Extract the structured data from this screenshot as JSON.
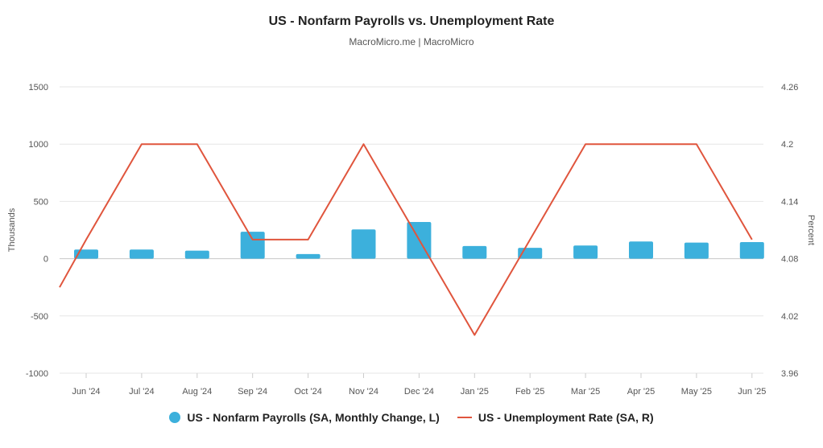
{
  "chart_data": {
    "type": "bar",
    "title": "US - Nonfarm Payrolls vs. Unemployment Rate",
    "subtitle": "MacroMicro.me | MacroMicro",
    "categories": [
      "Jun '24",
      "Jul '24",
      "Aug '24",
      "Sep '24",
      "Oct '24",
      "Nov '24",
      "Dec '24",
      "Jan '25",
      "Feb '25",
      "Mar '25",
      "Apr '25",
      "May '25",
      "Jun '25"
    ],
    "y_left": {
      "label": "Thousands",
      "ylim": [
        -1000,
        1500
      ],
      "ticks": [
        1500,
        1000,
        500,
        0,
        -500,
        -1000
      ],
      "tick_labels": [
        "1500",
        "1000",
        "500",
        "0",
        "-500",
        "-1000"
      ]
    },
    "y_right": {
      "label": "Percent",
      "ylim": [
        3.96,
        4.26
      ],
      "ticks": [
        4.26,
        4.2,
        4.14,
        4.08,
        4.02,
        3.96
      ],
      "tick_labels": [
        "4.26",
        "4.2",
        "4.14",
        "4.08",
        "4.02",
        "3.96"
      ]
    },
    "grid": true,
    "legend_position": "bottom",
    "series": [
      {
        "name": "US - Nonfarm Payrolls (SA, Monthly Change, L)",
        "type": "bar",
        "axis": "left",
        "color": "#3cb0dc",
        "values": [
          80,
          80,
          70,
          235,
          40,
          255,
          320,
          110,
          95,
          115,
          150,
          140,
          145
        ]
      },
      {
        "name": "US - Unemployment Rate (SA, R)",
        "type": "line",
        "axis": "right",
        "color": "#e0553d",
        "leading_value": 4.05,
        "values": [
          4.1,
          4.2,
          4.2,
          4.1,
          4.1,
          4.2,
          4.1,
          4.0,
          4.1,
          4.2,
          4.2,
          4.2,
          4.1
        ]
      }
    ]
  }
}
